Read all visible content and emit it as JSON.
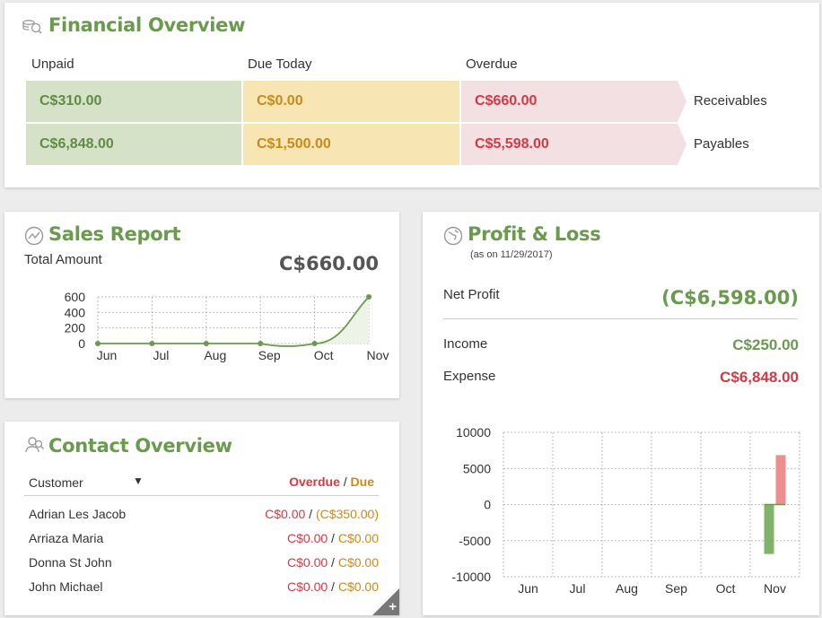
{
  "financial": {
    "title": "Financial Overview",
    "columns": [
      "Unpaid",
      "Due Today",
      "Overdue"
    ],
    "rows": [
      {
        "label": "Receivables",
        "unpaid": "C$310.00",
        "due_today": "C$0.00",
        "overdue": "C$660.00"
      },
      {
        "label": "Payables",
        "unpaid": "C$6,848.00",
        "due_today": "C$1,500.00",
        "overdue": "C$5,598.00"
      }
    ]
  },
  "sales": {
    "title": "Sales Report",
    "total_label": "Total Amount",
    "total_value": "C$660.00"
  },
  "contact": {
    "title": "Contact Overview",
    "customer_header": "Customer",
    "overdue_header": "Overdue",
    "separator": "/",
    "due_header": "Due",
    "rows": [
      {
        "name": "Adrian Les Jacob",
        "overdue": "C$0.00",
        "due": "(C$350.00)"
      },
      {
        "name": "Arriaza Maria",
        "overdue": "C$0.00",
        "due": "C$0.00"
      },
      {
        "name": "Donna St John",
        "overdue": "C$0.00",
        "due": "C$0.00"
      },
      {
        "name": "John Michael",
        "overdue": "C$0.00",
        "due": "C$0.00"
      }
    ],
    "add_icon": "plus-icon"
  },
  "profit_loss": {
    "title": "Profit & Loss",
    "subtitle": "(as on 11/29/2017)",
    "net_label": "Net Profit",
    "net_value": "(C$6,598.00)",
    "income_label": "Income",
    "income_value": "C$250.00",
    "expense_label": "Expense",
    "expense_value": "C$6,848.00"
  },
  "colors": {
    "accent_green": "#6a9a4d",
    "overdue_red": "#d23a45",
    "due_orange": "#c98a1c",
    "bar_income": "#80b46a",
    "bar_expense": "#ef8e8e"
  },
  "chart_data": [
    {
      "type": "line",
      "categories": [
        "Jun",
        "Jul",
        "Aug",
        "Sep",
        "Oct",
        "Nov"
      ],
      "values": [
        0,
        0,
        0,
        0,
        0,
        660
      ],
      "ylim": [
        0,
        600
      ],
      "yticks": [
        0,
        200,
        400,
        600
      ],
      "grid": true
    },
    {
      "type": "bar",
      "categories": [
        "Jun",
        "Jul",
        "Aug",
        "Sep",
        "Oct",
        "Nov"
      ],
      "series": [
        {
          "values": [
            0,
            0,
            0,
            0,
            0,
            -6848
          ]
        },
        {
          "values": [
            0,
            0,
            0,
            0,
            0,
            6848
          ]
        }
      ],
      "ylim": [
        -10000,
        10000
      ],
      "yticks": [
        10000,
        5000,
        0,
        -5000,
        -10000
      ],
      "grid": true
    }
  ]
}
